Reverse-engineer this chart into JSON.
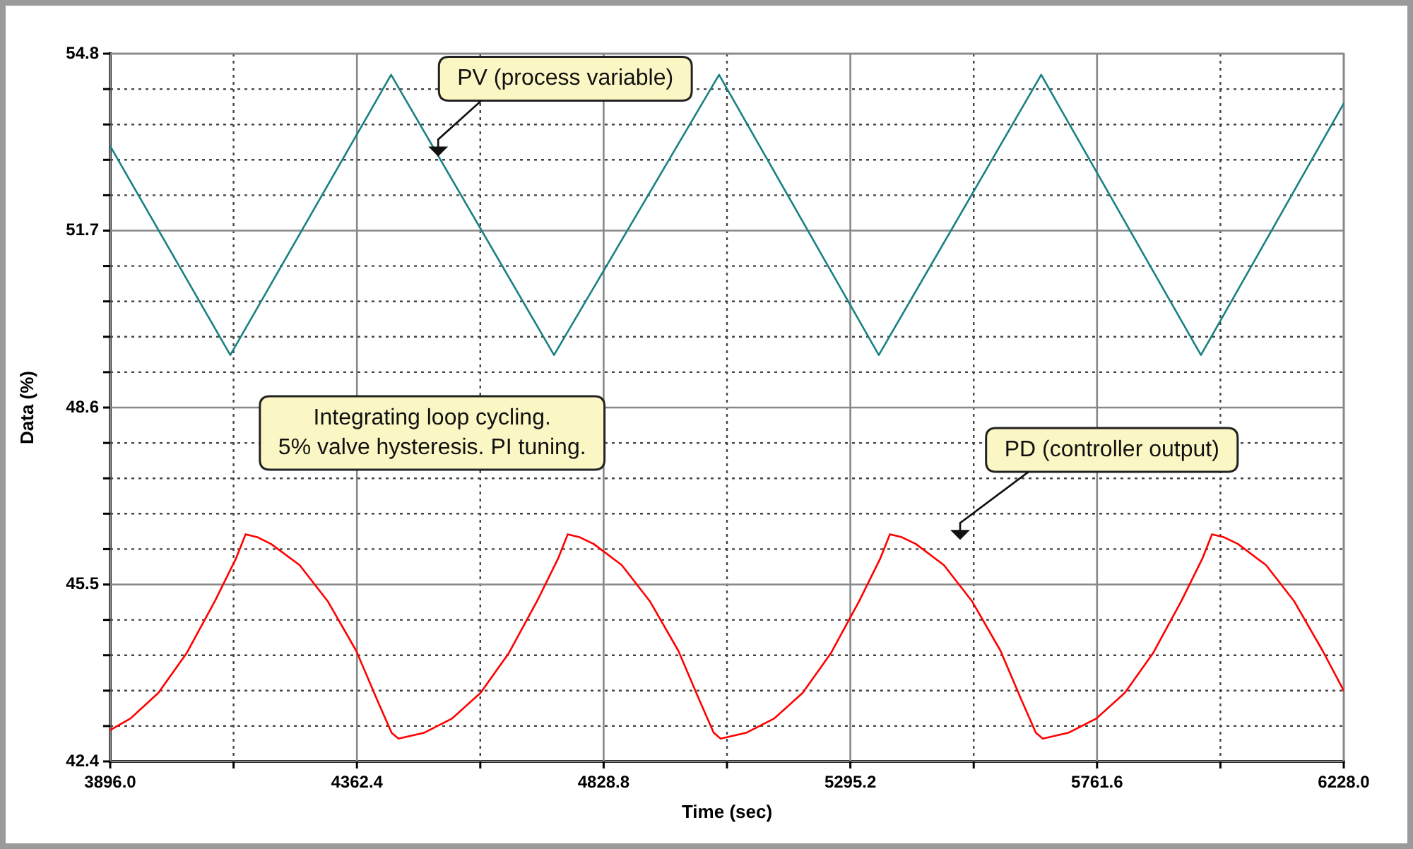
{
  "chart_data": {
    "type": "line",
    "xlabel": "Time (sec)",
    "ylabel": "Data (%)",
    "xlim": [
      3896,
      6228
    ],
    "xticks": [
      {
        "value": 3896,
        "label": "3896.0"
      },
      {
        "value": 4129.2,
        "label": null
      },
      4362.4,
      {
        "value": 4595.6,
        "label": null
      },
      4828.8,
      {
        "value": 5062,
        "label": null
      },
      5295.2,
      {
        "value": 5528.4,
        "label": null
      },
      5761.6,
      {
        "value": 5994.8,
        "label": null
      },
      {
        "value": 6228,
        "label": "6228.0"
      }
    ],
    "ylim": [
      42.4,
      54.8
    ],
    "yticks": [
      42.4,
      {
        "value": 43.02,
        "label": null
      },
      {
        "value": 43.64,
        "label": null
      },
      {
        "value": 44.26,
        "label": null
      },
      {
        "value": 44.88,
        "label": null
      },
      45.5,
      {
        "value": 46.12,
        "label": null
      },
      {
        "value": 46.74,
        "label": null
      },
      {
        "value": 47.36,
        "label": null
      },
      {
        "value": 47.98,
        "label": null
      },
      48.6,
      {
        "value": 49.22,
        "label": null
      },
      {
        "value": 49.84,
        "label": null
      },
      {
        "value": 50.46,
        "label": null
      },
      {
        "value": 51.08,
        "label": null
      },
      51.7,
      {
        "value": 52.32,
        "label": null
      },
      {
        "value": 52.94,
        "label": null
      },
      {
        "value": 53.56,
        "label": null
      },
      {
        "value": 54.18,
        "label": null
      },
      54.8
    ],
    "grid": true,
    "legend": false,
    "marker": "none",
    "line_style": "solid",
    "series": [
      {
        "color": "#1a8080",
        "x": [
          3896,
          4123,
          4427,
          4735,
          5047,
          5349,
          5656,
          5958,
          6228
        ],
        "values": [
          53.18,
          49.52,
          54.43,
          49.52,
          54.43,
          49.52,
          54.43,
          49.52,
          53.93
        ]
      },
      {
        "color": "#ff0000",
        "x": [
          3896,
          3934,
          3987,
          4040,
          4094,
          4134,
          4152,
          4174,
          4200,
          4254,
          4307,
          4361,
          4401,
          4428,
          4441,
          4489,
          4542,
          4596,
          4649,
          4703,
          4743,
          4761,
          4783,
          4810,
          4863,
          4916,
          4970,
          5010,
          5037,
          5050,
          5098,
          5151,
          5205,
          5258,
          5312,
          5352,
          5370,
          5392,
          5419,
          5472,
          5525,
          5579,
          5619,
          5646,
          5659,
          5707,
          5760,
          5814,
          5867,
          5921,
          5961,
          5979,
          6001,
          6028,
          6081,
          6134,
          6188,
          6228
        ],
        "values": [
          42.95,
          43.15,
          43.6,
          44.29,
          45.21,
          45.96,
          46.38,
          46.33,
          46.21,
          45.84,
          45.21,
          44.34,
          43.47,
          42.9,
          42.8,
          42.9,
          43.15,
          43.6,
          44.29,
          45.21,
          45.96,
          46.38,
          46.33,
          46.21,
          45.84,
          45.21,
          44.34,
          43.47,
          42.9,
          42.8,
          42.9,
          43.15,
          43.6,
          44.29,
          45.21,
          45.96,
          46.38,
          46.33,
          46.21,
          45.84,
          45.21,
          44.34,
          43.47,
          42.9,
          42.8,
          42.9,
          43.15,
          43.6,
          44.29,
          45.21,
          45.96,
          46.38,
          46.33,
          46.21,
          45.84,
          45.21,
          44.34,
          43.64
        ]
      }
    ],
    "annotations": [
      {
        "text": "PV (process variable)",
        "x": 4516,
        "y": 53.0
      },
      "Integrating loop cycling.\n5% valve hysteresis. PI tuning.",
      "PD (controller output)"
    ]
  }
}
